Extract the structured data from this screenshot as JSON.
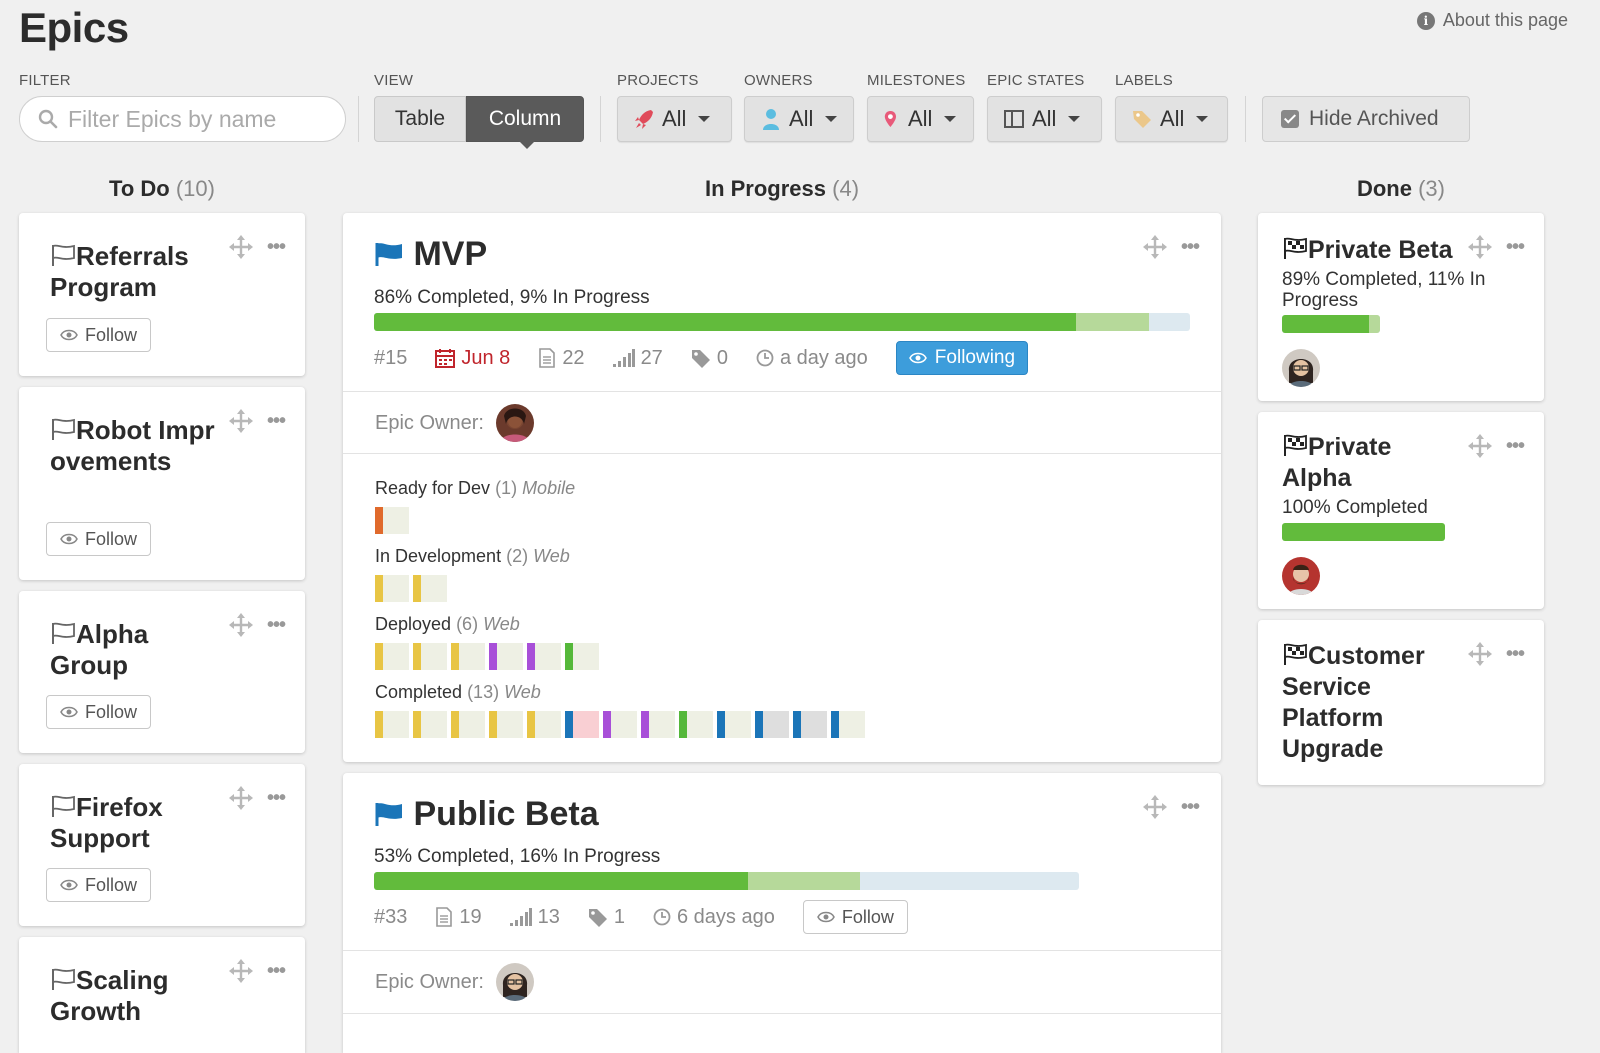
{
  "page": {
    "title": "Epics",
    "about": "About this page"
  },
  "filters": {
    "filter_label": "FILTER",
    "search_placeholder": "Filter Epics by name",
    "view_label": "VIEW",
    "view_options": [
      "Table",
      "Column"
    ],
    "view_selected": "Column",
    "projects": {
      "label": "PROJECTS",
      "value": "All"
    },
    "owners": {
      "label": "OWNERS",
      "value": "All"
    },
    "milestones": {
      "label": "MILESTONES",
      "value": "All"
    },
    "epic_states": {
      "label": "EPIC STATES",
      "value": "All"
    },
    "labels": {
      "label": "LABELS",
      "value": "All"
    },
    "hide_archived": "Hide Archived"
  },
  "columns": {
    "todo": {
      "name": "To Do",
      "count": "(10)"
    },
    "inprogress": {
      "name": "In Progress",
      "count": "(4)"
    },
    "done": {
      "name": "Done",
      "count": "(3)"
    }
  },
  "todo_cards": [
    {
      "title": "Referrals Program",
      "follow": "Follow"
    },
    {
      "title": "Robot Improvements",
      "follow": "Follow"
    },
    {
      "title": "Alpha Group",
      "follow": "Follow"
    },
    {
      "title": "Firefox Support",
      "follow": "Follow"
    },
    {
      "title": "Scaling Growth",
      "follow": "Follow"
    }
  ],
  "mvp": {
    "title": "MVP",
    "progress_text": "86% Completed, 9% In Progress",
    "completed_pct": 86,
    "inprogress_pct": 9,
    "id": "#15",
    "date": "Jun 8",
    "stories": "22",
    "points": "27",
    "labels": "0",
    "updated": "a day ago",
    "follow_state": "Following",
    "owner_label": "Epic Owner:",
    "states": [
      {
        "name": "Ready for Dev",
        "count": "(1)",
        "project": "Mobile",
        "colors": [
          "#e06a2c"
        ]
      },
      {
        "name": "In Development",
        "count": "(2)",
        "project": "Web",
        "colors": [
          "#e8c544",
          "#e8c544"
        ]
      },
      {
        "name": "Deployed",
        "count": "(6)",
        "project": "Web",
        "colors": [
          "#e8c544",
          "#e8c544",
          "#e8c544",
          "#a84fd8",
          "#a84fd8",
          "#55b83a"
        ]
      },
      {
        "name": "Completed",
        "count": "(13)",
        "project": "Web",
        "colors": [
          "#e8c544",
          "#e8c544",
          "#e8c544",
          "#e8c544",
          "#e8c544",
          "#1b75b8",
          "#a84fd8",
          "#a84fd8",
          "#55b83a",
          "#1b75b8",
          "#1b75b8",
          "#1b75b8",
          "#1b75b8"
        ]
      }
    ]
  },
  "public_beta": {
    "title": "Public Beta",
    "progress_text": "53% Completed, 16% In Progress",
    "completed_pct": 53,
    "inprogress_pct": 16,
    "id": "#33",
    "stories": "19",
    "points": "13",
    "labels": "1",
    "updated": "6 days ago",
    "follow_state": "Follow",
    "owner_label": "Epic Owner:"
  },
  "done_cards": [
    {
      "title": "Private Beta",
      "progress_text": "89% Completed, 11% In Progress",
      "completed_pct": 89,
      "inprogress_pct": 11
    },
    {
      "title": "Private Alpha",
      "progress_text": "100% Completed",
      "completed_pct": 100,
      "inprogress_pct": 0
    },
    {
      "title": "Customer Service Platform Upgrade"
    }
  ],
  "colors": {
    "accent": "#3d9ddb",
    "complete": "#62bb3c",
    "in_progress": "#b6d99a",
    "date_due": "#c0252c"
  }
}
